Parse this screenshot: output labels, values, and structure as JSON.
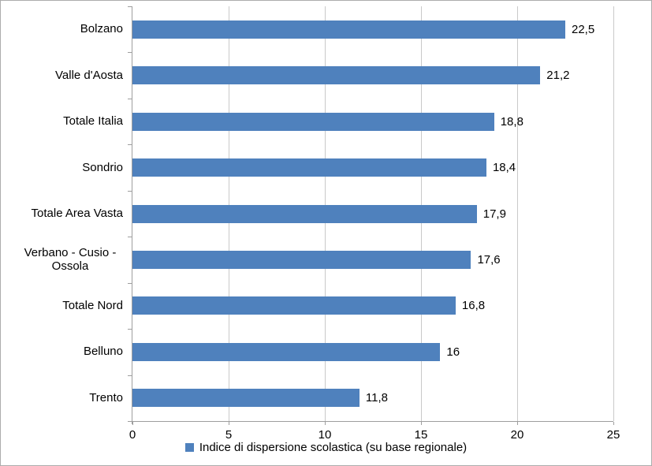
{
  "chart_data": {
    "type": "bar",
    "orientation": "horizontal",
    "title": "",
    "categories": [
      "Bolzano",
      "Valle d'Aosta",
      "Totale Italia",
      "Sondrio",
      "Totale Area Vasta",
      "Verbano - Cusio - Ossola",
      "Totale Nord",
      "Belluno",
      "Trento"
    ],
    "values": [
      22.5,
      21.2,
      18.8,
      18.4,
      17.9,
      17.6,
      16.8,
      16,
      11.8
    ],
    "value_labels": [
      "22,5",
      "21,2",
      "18,8",
      "18,4",
      "17,9",
      "17,6",
      "16,8",
      "16",
      "11,8"
    ],
    "x_ticks": [
      0,
      5,
      10,
      15,
      20,
      25
    ],
    "x_tick_labels": [
      "0",
      "5",
      "10",
      "15",
      "20",
      "25"
    ],
    "xlim": [
      0,
      25
    ],
    "xlabel": "",
    "ylabel": "",
    "grid": "vertical-only",
    "legend_position": "bottom-center",
    "legend": "Indice di dispersione scolastica (su base regionale)",
    "colors": {
      "bar": "#4F81BD",
      "gridline": "#C9C9C9",
      "axis": "#9E9E9E",
      "text": "#000000",
      "border": "#ACACAC",
      "background": "#FFFFFF"
    }
  }
}
